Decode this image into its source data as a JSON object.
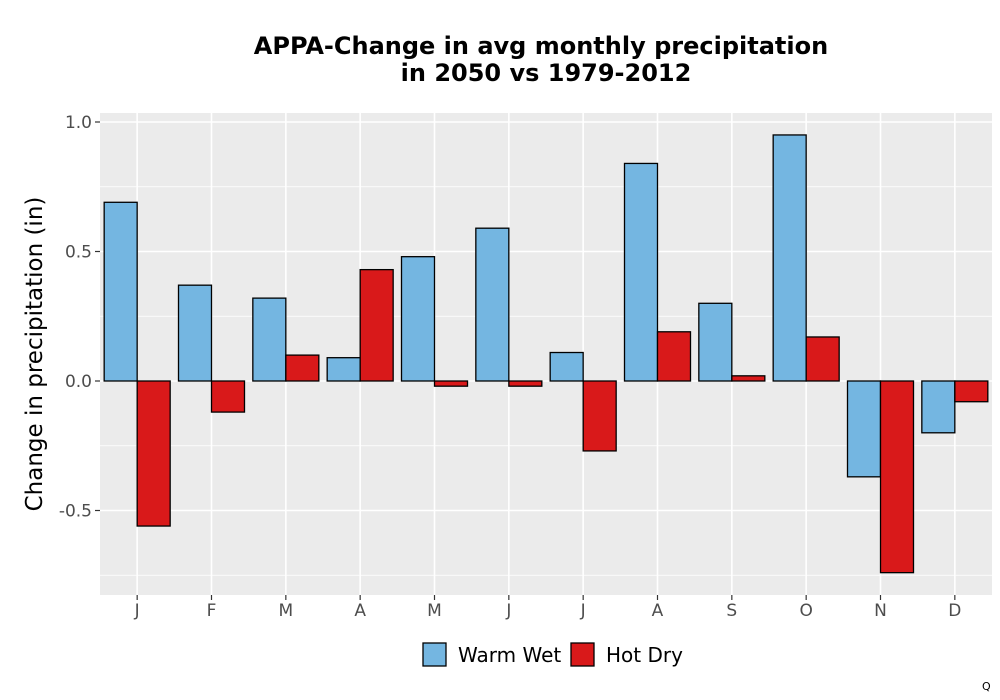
{
  "chart_data": {
    "type": "bar",
    "title_line1": "APPA-Change in avg monthly precipitation",
    "title_line2": "in 2050 vs 1979-2012",
    "xlabel": "",
    "ylabel": "Change in precipitation (in)",
    "ylim": [
      -0.82,
      1.03
    ],
    "yticks": [
      1.0,
      0.5,
      0.0,
      -0.5
    ],
    "ytick_labels": [
      "1.0",
      "0.5",
      "0.0",
      "-0.5"
    ],
    "categories": [
      "J",
      "F",
      "M",
      "A",
      "M",
      "J",
      "J",
      "A",
      "S",
      "O",
      "N",
      "D"
    ],
    "series": [
      {
        "name": "Warm Wet",
        "color": "#74b6e1",
        "values": [
          0.69,
          0.37,
          0.32,
          0.09,
          0.48,
          0.59,
          0.11,
          0.84,
          0.3,
          0.95,
          -0.37,
          -0.2
        ]
      },
      {
        "name": "Hot Dry",
        "color": "#d9191a",
        "values": [
          -0.56,
          -0.12,
          0.1,
          0.43,
          -0.02,
          -0.02,
          -0.27,
          0.19,
          0.02,
          0.17,
          -0.74,
          -0.08
        ]
      }
    ],
    "grid": true,
    "legend_position": "bottom",
    "panel_color": "#ebebeb"
  },
  "corner_mark": "Q"
}
